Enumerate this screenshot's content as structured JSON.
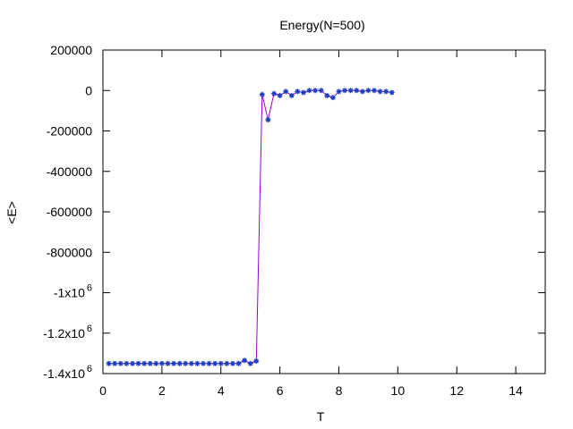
{
  "chart_data": {
    "type": "line",
    "title": "Energy(N=500)",
    "xlabel": "T",
    "ylabel": "<E>",
    "xlim": [
      0,
      15
    ],
    "ylim": [
      -1400000,
      200000
    ],
    "grid": false,
    "legend": "none",
    "line_color": "#9400d3",
    "marker_color": "#1f3fbf",
    "x_ticks": [
      {
        "value": 0,
        "label": "0"
      },
      {
        "value": 2,
        "label": "2"
      },
      {
        "value": 4,
        "label": "4"
      },
      {
        "value": 6,
        "label": "6"
      },
      {
        "value": 8,
        "label": "8"
      },
      {
        "value": 10,
        "label": "10"
      },
      {
        "value": 12,
        "label": "12"
      },
      {
        "value": 14,
        "label": "14"
      }
    ],
    "y_ticks": [
      {
        "value": 200000,
        "label": "200000",
        "sup": ""
      },
      {
        "value": 0,
        "label": "0",
        "sup": ""
      },
      {
        "value": -200000,
        "label": "-200000",
        "sup": ""
      },
      {
        "value": -400000,
        "label": "-400000",
        "sup": ""
      },
      {
        "value": -600000,
        "label": "-600000",
        "sup": ""
      },
      {
        "value": -800000,
        "label": "-800000",
        "sup": ""
      },
      {
        "value": -1000000,
        "label": "-1x10",
        "sup": "6"
      },
      {
        "value": -1200000,
        "label": "-1.2x10",
        "sup": "6"
      },
      {
        "value": -1400000,
        "label": "-1.4x10",
        "sup": "6"
      }
    ],
    "series": [
      {
        "x": [
          0.2,
          0.4,
          0.6,
          0.8,
          1.0,
          1.2,
          1.4,
          1.6,
          1.8,
          2.0,
          2.2,
          2.4,
          2.6,
          2.8,
          3.0,
          3.2,
          3.4,
          3.6,
          3.8,
          4.0,
          4.2,
          4.4,
          4.6,
          4.8,
          5.0,
          5.2,
          5.4,
          5.6,
          5.8,
          6.0,
          6.2,
          6.4,
          6.6,
          6.8,
          7.0,
          7.2,
          7.4,
          7.6,
          7.8,
          8.0,
          8.2,
          8.4,
          8.6,
          8.8,
          9.0,
          9.2,
          9.4,
          9.6,
          9.8
        ],
        "y": [
          -1350000,
          -1350000,
          -1350000,
          -1350000,
          -1350000,
          -1350000,
          -1350000,
          -1350000,
          -1350000,
          -1350000,
          -1350000,
          -1350000,
          -1350000,
          -1350000,
          -1350000,
          -1350000,
          -1350000,
          -1350000,
          -1350000,
          -1350000,
          -1350000,
          -1350000,
          -1350000,
          -1335000,
          -1350000,
          -1338000,
          -20000,
          -145000,
          -15000,
          -25000,
          -5000,
          -25000,
          -5000,
          -10000,
          0,
          0,
          0,
          -25000,
          -35000,
          -5000,
          0,
          0,
          0,
          -5000,
          0,
          0,
          -5000,
          -5000,
          -10000
        ]
      }
    ]
  }
}
